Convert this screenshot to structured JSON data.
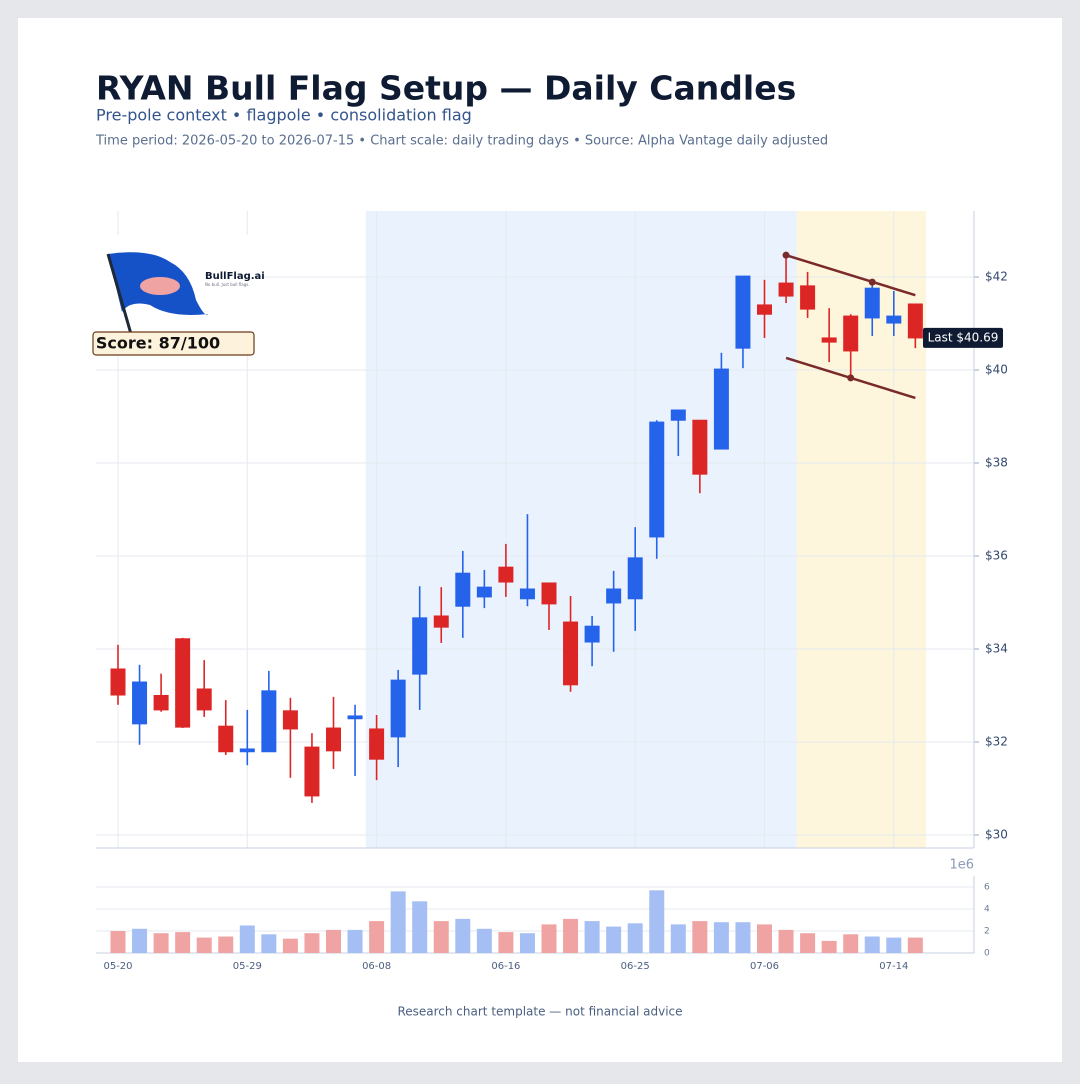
{
  "chart_data": [
    {
      "type": "candlestick",
      "title": "RYAN Bull Flag Setup — Daily Candles",
      "subtitle": "Pre-pole context • flagpole • consolidation flag",
      "meta": "Time period: 2026-05-20 to 2026-07-15 • Chart scale: daily trading days • Source: Alpha Vantage daily adjusted",
      "open": [
        33.57,
        32.39,
        33.0,
        34.22,
        33.14,
        32.34,
        31.79,
        31.79,
        32.67,
        31.89,
        32.3,
        32.5,
        32.28,
        32.11,
        33.46,
        34.71,
        34.92,
        35.12,
        35.76,
        35.08,
        35.42,
        34.58,
        34.15,
        34.99,
        35.08,
        36.41,
        38.92,
        38.92,
        38.3,
        40.47,
        41.4,
        41.87,
        41.81,
        40.69,
        41.16,
        41.12,
        41.01,
        41.42
      ],
      "high": [
        34.09,
        33.66,
        33.47,
        34.24,
        33.76,
        32.9,
        32.69,
        33.53,
        32.95,
        32.19,
        32.97,
        32.8,
        32.58,
        33.55,
        35.35,
        35.33,
        36.11,
        35.7,
        36.26,
        36.9,
        35.42,
        35.14,
        34.71,
        35.68,
        36.62,
        38.92,
        39.14,
        38.92,
        40.37,
        42.02,
        41.94,
        42.47,
        42.11,
        41.33,
        41.2,
        41.89,
        41.7,
        41.42
      ],
      "low": [
        32.8,
        31.94,
        32.65,
        32.3,
        32.54,
        31.72,
        31.5,
        31.79,
        31.23,
        30.69,
        31.42,
        31.27,
        31.18,
        31.46,
        32.69,
        34.13,
        34.24,
        34.88,
        35.12,
        34.92,
        34.41,
        33.08,
        33.63,
        33.94,
        34.39,
        35.94,
        38.15,
        37.35,
        38.3,
        40.04,
        40.69,
        41.44,
        41.12,
        40.17,
        39.83,
        40.73,
        40.73,
        40.47
      ],
      "close": [
        33.01,
        33.29,
        32.69,
        32.32,
        32.69,
        31.79,
        31.85,
        33.1,
        32.28,
        30.84,
        31.81,
        32.56,
        31.63,
        33.33,
        34.67,
        34.47,
        35.63,
        35.33,
        35.44,
        35.29,
        34.97,
        33.23,
        34.49,
        35.29,
        35.96,
        38.88,
        39.14,
        37.76,
        40.02,
        42.02,
        41.2,
        41.59,
        41.31,
        40.6,
        40.41,
        41.76,
        41.16,
        40.69
      ],
      "up_color": "#2563eb",
      "down_color": "#dc2626",
      "ylim": [
        29.72,
        43.42
      ],
      "yticks": [
        {
          "value": 30,
          "label": "$30"
        },
        {
          "value": 32,
          "label": "$32"
        },
        {
          "value": 34,
          "label": "$34"
        },
        {
          "value": 36,
          "label": "$36"
        },
        {
          "value": 38,
          "label": "$38"
        },
        {
          "value": 40,
          "label": "$40"
        },
        {
          "value": 42,
          "label": "$42"
        }
      ],
      "grid": true,
      "regions": [
        {
          "start": 12,
          "end": 31,
          "color": "#eaf2fd"
        },
        {
          "start": 32,
          "end": 37,
          "color": "#fdf6dc"
        }
      ],
      "trendlines": [
        {
          "x": [
            31,
            37
          ],
          "y": [
            42.47,
            41.61
          ],
          "touches": [
            {
              "x": 31,
              "y": 42.47
            },
            {
              "x": 35,
              "y": 41.89
            }
          ]
        },
        {
          "x": [
            31,
            37
          ],
          "y": [
            40.26,
            39.4
          ],
          "touches": [
            {
              "x": 34,
              "y": 39.83
            }
          ]
        }
      ],
      "trendline_color": "#7a2a2a",
      "last_label": "Last $40.69",
      "score_label": "Score: 87/100"
    },
    {
      "type": "bar",
      "categories": [
        "05-20",
        null,
        null,
        null,
        null,
        null,
        "05-29",
        null,
        null,
        null,
        null,
        null,
        "06-08",
        null,
        null,
        null,
        null,
        null,
        "06-16",
        null,
        null,
        null,
        null,
        null,
        "06-25",
        null,
        null,
        null,
        null,
        null,
        "07-06",
        null,
        null,
        null,
        null,
        null,
        "07-14",
        null
      ],
      "values": [
        2.0,
        2.2,
        1.8,
        1.9,
        1.4,
        1.5,
        2.5,
        1.7,
        1.3,
        1.8,
        2.1,
        2.1,
        2.9,
        5.6,
        4.7,
        2.9,
        3.1,
        2.2,
        1.9,
        1.8,
        2.6,
        3.1,
        2.9,
        2.4,
        2.7,
        5.7,
        2.6,
        2.9,
        2.8,
        2.8,
        2.6,
        2.1,
        1.8,
        1.1,
        1.7,
        1.5,
        1.4,
        1.4
      ],
      "up_color": "#a5bff5",
      "down_color": "#f0a3a3",
      "ylim": [
        0,
        7
      ],
      "yticks": [
        0,
        2,
        4,
        6
      ],
      "offset_label": "1e6",
      "grid": true
    }
  ],
  "logo": {
    "brand": "BullFlag.ai",
    "tagline": "No bull. Just bull flags."
  },
  "footer": "Research chart template — not financial advice"
}
